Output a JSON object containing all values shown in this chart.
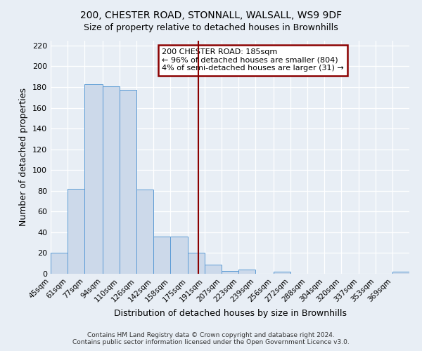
{
  "title": "200, CHESTER ROAD, STONNALL, WALSALL, WS9 9DF",
  "subtitle": "Size of property relative to detached houses in Brownhills",
  "xlabel": "Distribution of detached houses by size in Brownhills",
  "ylabel": "Number of detached properties",
  "bin_labels": [
    "45sqm",
    "61sqm",
    "77sqm",
    "94sqm",
    "110sqm",
    "126sqm",
    "142sqm",
    "158sqm",
    "175sqm",
    "191sqm",
    "207sqm",
    "223sqm",
    "239sqm",
    "256sqm",
    "272sqm",
    "288sqm",
    "304sqm",
    "320sqm",
    "337sqm",
    "353sqm",
    "369sqm"
  ],
  "bin_edges": [
    45,
    61,
    77,
    94,
    110,
    126,
    142,
    158,
    175,
    191,
    207,
    223,
    239,
    256,
    272,
    288,
    304,
    320,
    337,
    353,
    369,
    385
  ],
  "bar_heights": [
    20,
    82,
    183,
    181,
    177,
    81,
    36,
    36,
    20,
    9,
    3,
    4,
    0,
    2,
    0,
    0,
    0,
    0,
    0,
    0,
    2
  ],
  "bar_facecolor": "#ccd9ea",
  "bar_edgecolor": "#5b9bd5",
  "property_value": 185,
  "vline_color": "#8b0000",
  "annotation_line1": "200 CHESTER ROAD: 185sqm",
  "annotation_line2": "← 96% of detached houses are smaller (804)",
  "annotation_line3": "4% of semi-detached houses are larger (31) →",
  "annotation_box_color": "#8b0000",
  "ylim": [
    0,
    225
  ],
  "yticks": [
    0,
    20,
    40,
    60,
    80,
    100,
    120,
    140,
    160,
    180,
    200,
    220
  ],
  "footer_line1": "Contains HM Land Registry data © Crown copyright and database right 2024.",
  "footer_line2": "Contains public sector information licensed under the Open Government Licence v3.0.",
  "background_color": "#e8eef5",
  "plot_background_color": "#e8eef5",
  "title_fontsize": 10,
  "subtitle_fontsize": 9,
  "ylabel_fontsize": 9,
  "xlabel_fontsize": 9
}
